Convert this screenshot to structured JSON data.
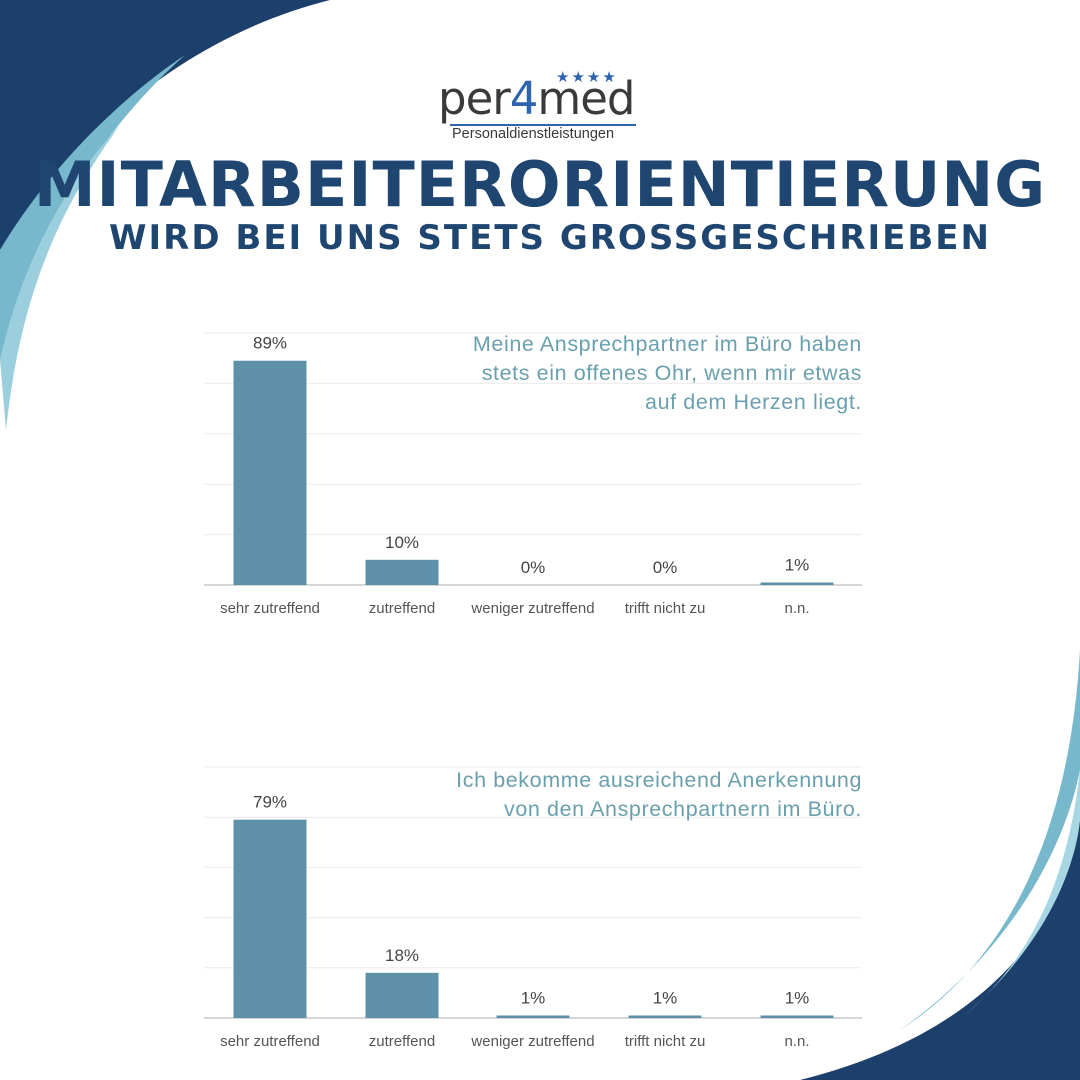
{
  "brand": {
    "name_part1": "per",
    "name_part2": "4",
    "name_part3": "med",
    "stars": "★★★★",
    "tagline": "Personaldienstleistungen"
  },
  "headline": {
    "line1": "Mitarbeiterorientierung",
    "line2": "wird bei uns stets großgeschrieben"
  },
  "colors": {
    "bar": "#5e91a8",
    "title": "#1f4670",
    "question": "#6aa0ad",
    "wave_dark": "#1d3f6c",
    "wave_light": "#77b8cc"
  },
  "chart_data": [
    {
      "type": "bar",
      "title": "Meine Ansprechpartner im Büro haben stets ein offenes Ohr, wenn mir etwas auf dem Herzen liegt.",
      "title_lines": [
        "Meine Ansprechpartner im Büro haben",
        "stets ein offenes Ohr, wenn mir etwas",
        "auf dem Herzen liegt."
      ],
      "categories": [
        "sehr zutreffend",
        "zutreffend",
        "weniger zutreffend",
        "trifft nicht zu",
        "n.n."
      ],
      "values": [
        89,
        10,
        0,
        0,
        1
      ],
      "labels": [
        "89%",
        "10%",
        "0%",
        "0%",
        "1%"
      ],
      "ylim": [
        0,
        100
      ],
      "grid": true
    },
    {
      "type": "bar",
      "title": "Ich bekomme ausreichend Anerkennung von den Ansprechpartnern im Büro.",
      "title_lines": [
        "Ich bekomme ausreichend Anerkennung",
        "von den Ansprechpartnern im Büro."
      ],
      "categories": [
        "sehr zutreffend",
        "zutreffend",
        "weniger zutreffend",
        "trifft nicht zu",
        "n.n."
      ],
      "values": [
        79,
        18,
        1,
        1,
        1
      ],
      "labels": [
        "79%",
        "18%",
        "1%",
        "1%",
        "1%"
      ],
      "ylim": [
        0,
        100
      ],
      "grid": true
    }
  ]
}
